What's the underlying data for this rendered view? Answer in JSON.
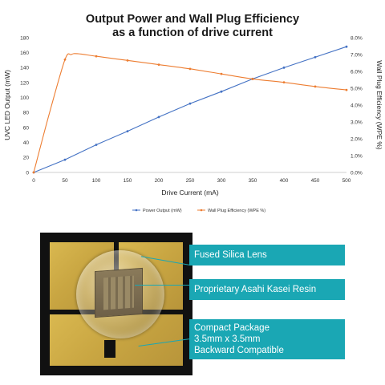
{
  "chart_data": {
    "type": "line",
    "title_line1": "Output Power and Wall Plug Efficiency",
    "title_line2": "as a function of drive current",
    "xlabel": "Drive Current (mA)",
    "ylabel_left": "UVC LED Output  (mW)",
    "ylabel_right": "Wall Plug Efficiency (WPE %)",
    "xlim": [
      0,
      500
    ],
    "ylim_left": [
      0,
      180
    ],
    "ylim_right": [
      0,
      8
    ],
    "x_ticks": [
      "0",
      "50",
      "100",
      "150",
      "200",
      "250",
      "300",
      "350",
      "400",
      "450",
      "500"
    ],
    "y_left_ticks": [
      "0",
      "20",
      "40",
      "60",
      "80",
      "100",
      "120",
      "140",
      "160",
      "180"
    ],
    "y_right_ticks": [
      "0.0%",
      "1.0%",
      "2.0%",
      "3.0%",
      "4.0%",
      "5.0%",
      "6.0%",
      "7.0%",
      "8.0%"
    ],
    "grid": false,
    "legend_position": "bottom",
    "series": [
      {
        "name": "Power Output (mW)",
        "axis": "left",
        "color": "#4472c4",
        "x": [
          0,
          50,
          100,
          150,
          200,
          250,
          300,
          350,
          400,
          450,
          500
        ],
        "values": [
          0,
          17,
          37,
          55,
          74,
          92,
          108,
          125,
          140,
          154,
          168
        ]
      },
      {
        "name": "Wall Plug Efficiency (WPE %)",
        "axis": "right",
        "color": "#ed7d31",
        "x": [
          0,
          25,
          50,
          60,
          70,
          100,
          150,
          200,
          250,
          300,
          350,
          400,
          450,
          500
        ],
        "values": [
          0,
          3.5,
          6.7,
          7.0,
          7.05,
          6.9,
          6.65,
          6.4,
          6.15,
          5.85,
          5.55,
          5.35,
          5.1,
          4.9
        ]
      }
    ]
  },
  "photo": {
    "callouts": [
      {
        "lines": [
          "Fused Silica Lens"
        ]
      },
      {
        "lines": [
          "Proprietary Asahi Kasei Resin"
        ]
      },
      {
        "lines": [
          "Compact Package",
          "3.5mm x 3.5mm",
          "Backward Compatible"
        ]
      }
    ],
    "accent_color": "#1aa7b4"
  }
}
